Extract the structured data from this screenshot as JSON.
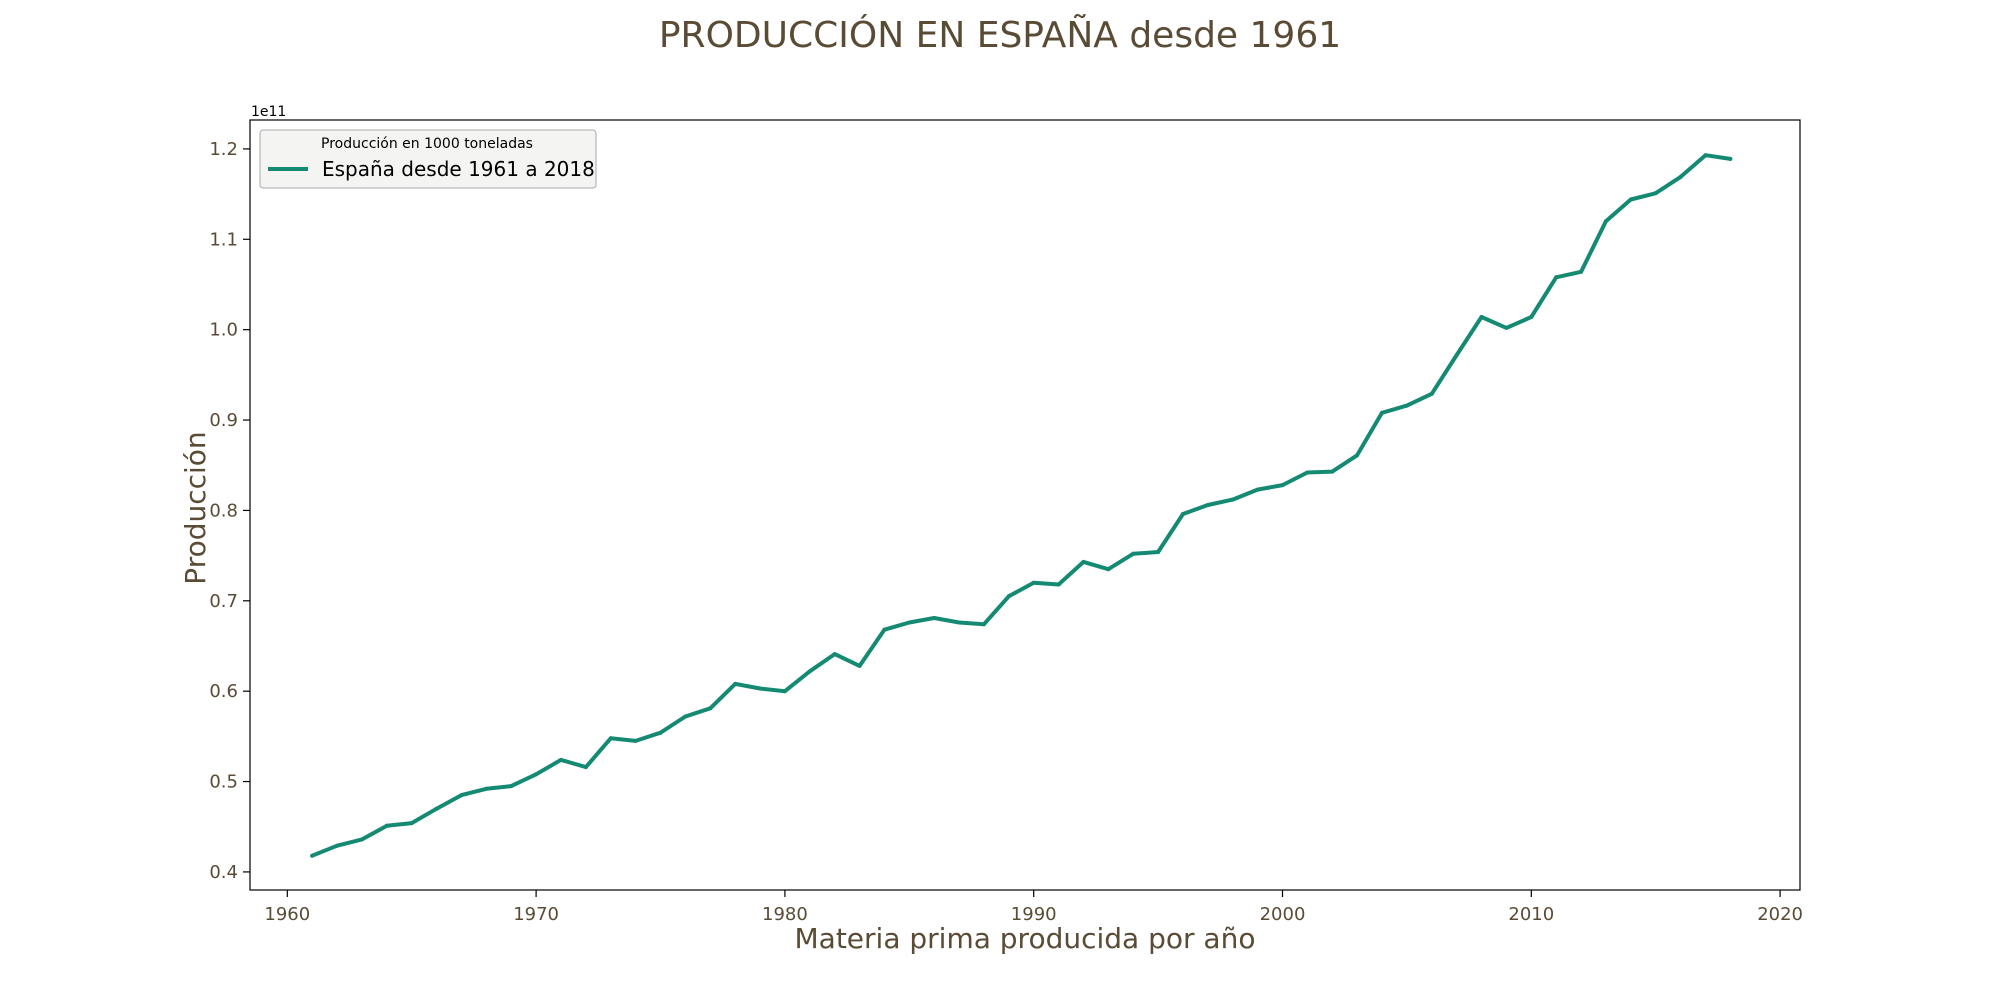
{
  "colors": {
    "line": "#158a73",
    "text": "#5a4b35",
    "legend_bg": "#f4f5f3",
    "legend_border": "#aaaaaa"
  },
  "chart_data": {
    "type": "line",
    "title": "PRODUCCIÓN EN ESPAÑA desde 1961",
    "xlabel": "Materia prima producida por año",
    "ylabel": "Producción",
    "y_offset_label": "1e11",
    "xlim": [
      1958.5,
      2020.8
    ],
    "ylim": [
      0.38,
      1.232
    ],
    "xticks": [
      1960,
      1970,
      1980,
      1990,
      2000,
      2010,
      2020
    ],
    "yticks": [
      0.4,
      0.5,
      0.6,
      0.7,
      0.8,
      0.9,
      1.0,
      1.1,
      1.2
    ],
    "ytick_labels": [
      "0.4",
      "0.5",
      "0.6",
      "0.7",
      "0.8",
      "0.9",
      "1.0",
      "1.1",
      "1.2"
    ],
    "grid": false,
    "legend": {
      "position": "top-left",
      "title": "Producción en 1000 toneladas",
      "entries": [
        "España desde 1961 a 2018"
      ]
    },
    "series": [
      {
        "name": "España desde 1961 a 2018",
        "x": [
          1961,
          1962,
          1963,
          1964,
          1965,
          1966,
          1967,
          1968,
          1969,
          1970,
          1971,
          1972,
          1973,
          1974,
          1975,
          1976,
          1977,
          1978,
          1979,
          1980,
          1981,
          1982,
          1983,
          1984,
          1985,
          1986,
          1987,
          1988,
          1989,
          1990,
          1991,
          1992,
          1993,
          1994,
          1995,
          1996,
          1997,
          1998,
          1999,
          2000,
          2001,
          2002,
          2003,
          2004,
          2005,
          2006,
          2007,
          2008,
          2009,
          2010,
          2011,
          2012,
          2013,
          2014,
          2015,
          2016,
          2017,
          2018
        ],
        "y": [
          0.418,
          0.429,
          0.436,
          0.451,
          0.454,
          0.47,
          0.485,
          0.492,
          0.495,
          0.508,
          0.524,
          0.516,
          0.548,
          0.545,
          0.554,
          0.572,
          0.581,
          0.608,
          0.603,
          0.6,
          0.622,
          0.641,
          0.628,
          0.668,
          0.676,
          0.681,
          0.676,
          0.674,
          0.705,
          0.72,
          0.718,
          0.743,
          0.735,
          0.752,
          0.754,
          0.796,
          0.806,
          0.812,
          0.823,
          0.828,
          0.842,
          0.843,
          0.861,
          0.908,
          0.916,
          0.929,
          0.972,
          1.014,
          1.002,
          1.014,
          1.058,
          1.064,
          1.12,
          1.144,
          1.151,
          1.169,
          1.193,
          1.189
        ]
      }
    ]
  }
}
